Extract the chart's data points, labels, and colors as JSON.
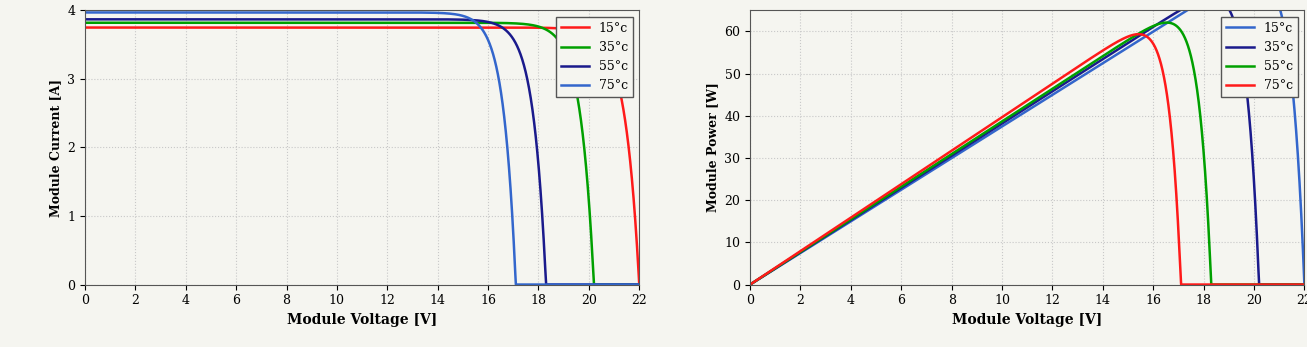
{
  "temperatures_labels": [
    "15°c",
    "35°c",
    "55°c",
    "75°c"
  ],
  "iv_colors": [
    "#ff1a1a",
    "#00a000",
    "#1a1a8c",
    "#3366cc"
  ],
  "pv_colors": [
    "#3366cc",
    "#1a1a8c",
    "#00a000",
    "#ff1a1a"
  ],
  "iv_Isc": [
    3.75,
    3.82,
    3.87,
    3.97
  ],
  "iv_Voc": [
    22.0,
    20.2,
    18.3,
    17.1
  ],
  "iv_a": [
    0.55,
    0.52,
    0.5,
    0.48
  ],
  "pv_Isc": [
    3.75,
    3.82,
    3.87,
    3.97
  ],
  "pv_Voc": [
    22.0,
    20.2,
    18.3,
    17.1
  ],
  "pv_a": [
    0.55,
    0.52,
    0.5,
    0.48
  ],
  "xlim": [
    0,
    22
  ],
  "iv_ylim": [
    0,
    4
  ],
  "pv_ylim": [
    0,
    65
  ],
  "iv_yticks": [
    0,
    1,
    2,
    3,
    4
  ],
  "pv_yticks": [
    0,
    10,
    20,
    30,
    40,
    50,
    60
  ],
  "xticks": [
    0,
    2,
    4,
    6,
    8,
    10,
    12,
    14,
    16,
    18,
    20,
    22
  ],
  "iv_ylabel": "Module Current [A]",
  "pv_ylabel": "Module Power [W]",
  "xlabel": "Module Voltage [V]",
  "grid_color": "#c8c8c8",
  "bg_color": "#f5f5f0",
  "axis_bg": "#f5f5f0"
}
